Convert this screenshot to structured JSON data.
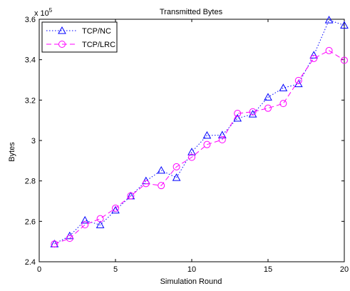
{
  "chart_data": {
    "type": "line",
    "title": "Transmitted Bytes",
    "xlabel": "Simulation Round",
    "ylabel": "Bytes",
    "y_exponent_label": "x 10",
    "y_exponent_power": "5",
    "xlim": [
      0,
      20
    ],
    "ylim": [
      240000,
      360000
    ],
    "x_ticks": [
      0,
      5,
      10,
      15,
      20
    ],
    "y_ticks": [
      240000,
      260000,
      280000,
      300000,
      320000,
      340000,
      360000
    ],
    "y_tick_labels": [
      "2.4",
      "2.6",
      "2.8",
      "3",
      "3.2",
      "3.4",
      "3.6"
    ],
    "grid": false,
    "legend_position": "top-left",
    "x": [
      1,
      2,
      3,
      4,
      5,
      6,
      7,
      8,
      9,
      10,
      11,
      12,
      13,
      14,
      15,
      16,
      17,
      18,
      19,
      20
    ],
    "series": [
      {
        "name": "TCP/NC",
        "color": "#0000ff",
        "marker": "triangle",
        "line_style": "dotted",
        "values": [
          248800,
          252800,
          260500,
          258200,
          265500,
          272500,
          280000,
          285200,
          281600,
          294300,
          302500,
          302700,
          311000,
          313000,
          321400,
          326000,
          328000,
          342200,
          359600,
          357000
        ]
      },
      {
        "name": "TCP/LRC",
        "color": "#ff00ff",
        "marker": "circle",
        "line_style": "dashed",
        "values": [
          248800,
          251600,
          258300,
          261300,
          266500,
          272600,
          278700,
          277700,
          287000,
          291700,
          298000,
          300400,
          313400,
          314200,
          316000,
          318300,
          329700,
          340600,
          344500,
          339700
        ]
      }
    ]
  }
}
